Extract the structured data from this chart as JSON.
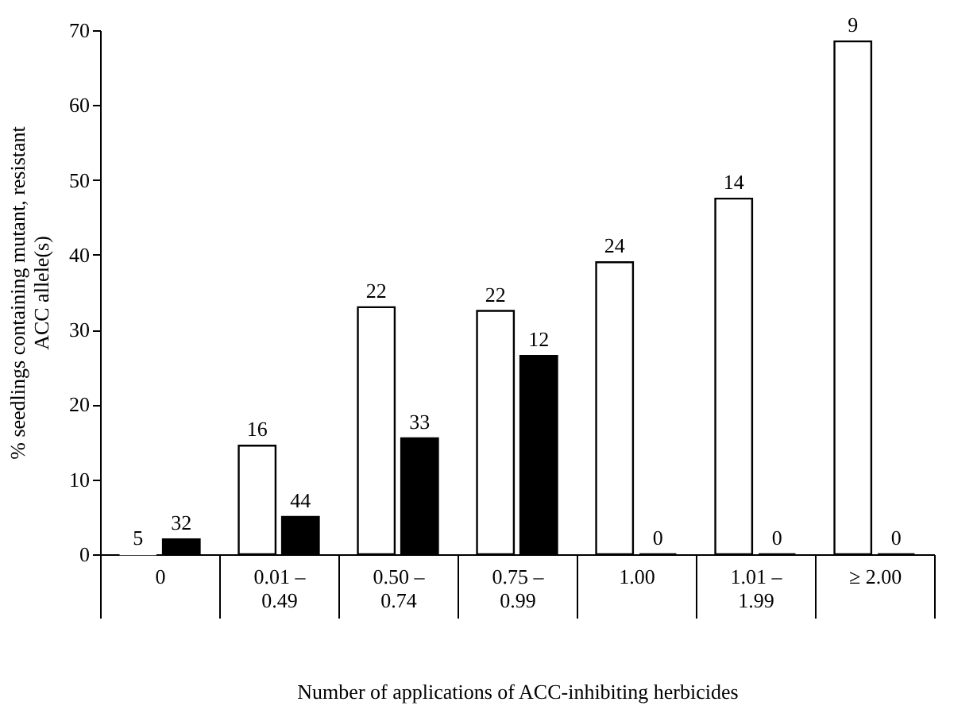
{
  "chart_data": {
    "type": "bar",
    "xlabel": "Number of applications of ACC-inhibiting herbicides",
    "ylabel": "% seedlings containing mutant, resistant\nACC allele(s)",
    "categories": [
      "0",
      "0.01 –\n0.49",
      "0.50 –\n0.74",
      "0.75 –\n0.99",
      "1.00",
      "1.01 –\n1.99",
      "≥ 2.00"
    ],
    "series": [
      {
        "color": "#ffffff",
        "values": [
          0,
          14.5,
          33,
          32.5,
          39,
          47.5,
          68.5
        ]
      },
      {
        "color": "#000000",
        "values": [
          2,
          5,
          15.5,
          26.5,
          0,
          0,
          0
        ]
      }
    ],
    "annotations": [
      {
        "text": "5",
        "x": "0",
        "y": 0
      },
      {
        "text": "32",
        "x": "0",
        "y": 2
      },
      {
        "text": "16",
        "x": "0.01 –\n0.49",
        "y": 14.5
      },
      {
        "text": "44",
        "x": "0.01 –\n0.49",
        "y": 5
      },
      {
        "text": "22",
        "x": "0.50 –\n0.74",
        "y": 33
      },
      {
        "text": "33",
        "x": "0.50 –\n0.74",
        "y": 15.5
      },
      {
        "text": "22",
        "x": "0.75 –\n0.99",
        "y": 32.5
      },
      {
        "text": "12",
        "x": "0.75 –\n0.99",
        "y": 26.5
      },
      {
        "text": "24",
        "x": "1.00",
        "y": 39
      },
      {
        "text": "0",
        "x": "1.00",
        "y": 0
      },
      {
        "text": "14",
        "x": "1.01 –\n1.99",
        "y": 47.5
      },
      {
        "text": "0",
        "x": "1.01 –\n1.99",
        "y": 0
      },
      {
        "text": "9",
        "x": "≥ 2.00",
        "y": 68.5
      },
      {
        "text": "0",
        "x": "≥ 2.00",
        "y": 0
      }
    ],
    "ylim": [
      0,
      70
    ],
    "yticks": [
      0,
      10,
      20,
      30,
      40,
      50,
      60,
      70
    ],
    "grid": false,
    "legend": false
  }
}
